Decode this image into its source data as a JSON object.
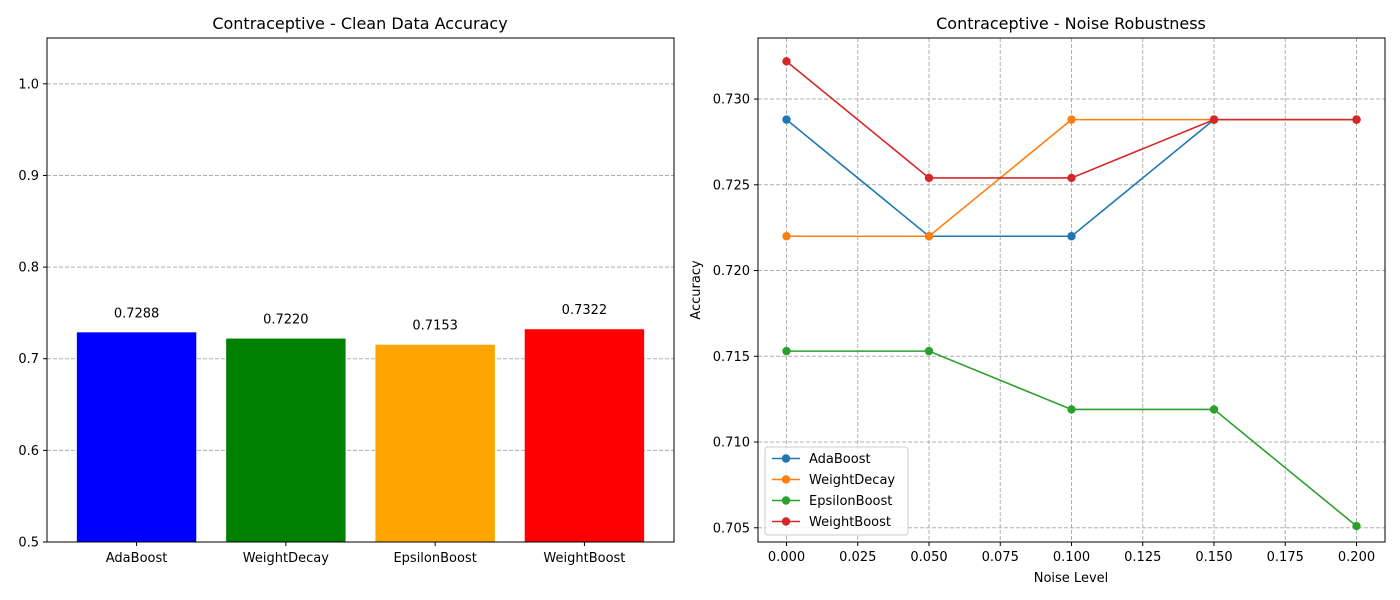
{
  "chart_data": [
    {
      "type": "bar",
      "title": "Contraceptive - Clean Data Accuracy",
      "xlabel": "",
      "ylabel": "",
      "categories": [
        "AdaBoost",
        "WeightDecay",
        "EpsilonBoost",
        "WeightBoost"
      ],
      "values": [
        0.7288,
        0.722,
        0.7153,
        0.7322
      ],
      "value_labels": [
        "0.7288",
        "0.7220",
        "0.7153",
        "0.7322"
      ],
      "colors": [
        "#0000ff",
        "#008000",
        "#ffa500",
        "#ff0000"
      ],
      "ylim": [
        0.5,
        1.05
      ],
      "yticks": [
        0.5,
        0.6,
        0.7,
        0.8,
        0.9,
        1.0
      ],
      "ytick_labels": [
        "0.5",
        "0.6",
        "0.7",
        "0.8",
        "0.9",
        "1.0"
      ],
      "grid": "y-dashed"
    },
    {
      "type": "line",
      "title": "Contraceptive - Noise Robustness",
      "xlabel": "Noise Level",
      "ylabel": "Accuracy",
      "x": [
        0.0,
        0.05,
        0.1,
        0.15,
        0.2
      ],
      "series": [
        {
          "name": "AdaBoost",
          "color": "#1f77b4",
          "values": [
            0.7288,
            0.722,
            0.722,
            0.7288,
            0.7288
          ]
        },
        {
          "name": "WeightDecay",
          "color": "#ff7f0e",
          "values": [
            0.722,
            0.722,
            0.7288,
            0.7288,
            0.7288
          ]
        },
        {
          "name": "EpsilonBoost",
          "color": "#2ca02c",
          "values": [
            0.7153,
            0.7153,
            0.7119,
            0.7119,
            0.7051
          ]
        },
        {
          "name": "WeightBoost",
          "color": "#d62728",
          "values": [
            0.7322,
            0.7254,
            0.7254,
            0.7288,
            0.7288
          ]
        }
      ],
      "xlim": [
        -0.01,
        0.21
      ],
      "ylim": [
        0.70417,
        0.73356
      ],
      "xticks": [
        0.0,
        0.025,
        0.05,
        0.075,
        0.1,
        0.125,
        0.15,
        0.175,
        0.2
      ],
      "xtick_labels": [
        "0.000",
        "0.025",
        "0.050",
        "0.075",
        "0.100",
        "0.125",
        "0.150",
        "0.175",
        "0.200"
      ],
      "yticks": [
        0.705,
        0.71,
        0.715,
        0.72,
        0.725,
        0.73
      ],
      "ytick_labels": [
        "0.705",
        "0.710",
        "0.715",
        "0.720",
        "0.725",
        "0.730"
      ],
      "grid": "both-dashed",
      "legend": "lower-left"
    }
  ]
}
